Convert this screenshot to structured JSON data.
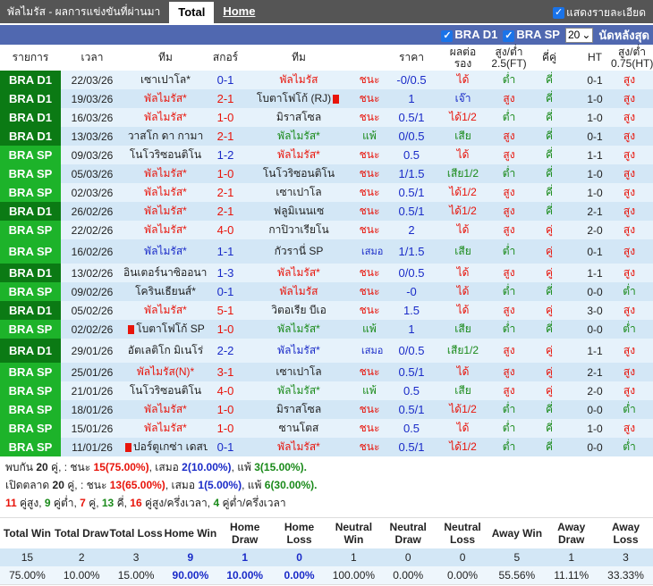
{
  "header": {
    "title": "พัลไมรัส - ผลการแข่งขันที่ผ่านมา",
    "tabs": [
      "Total",
      "Home"
    ],
    "show_detail": "แสดงรายละเอียด"
  },
  "filters": {
    "league1": "BRA D1",
    "league2": "BRA SP",
    "count": "20",
    "latest": "นัดหลังสุด"
  },
  "columns": [
    "รายการ",
    "เวลา",
    "ทีม",
    "สกอร์",
    "ทีม",
    "",
    "ราคา",
    "ผลต่อรอง",
    "สูง/ต่ำ 2.5(FT)",
    "คี่คู่",
    "HT",
    "สูง/ต่ำ 0.75(HT)"
  ],
  "colors": {
    "bra_d1": "#0b7a14",
    "bra_sp": "#1db32a",
    "win": "#e8140a",
    "draw": "#1a2bc8",
    "loss": "#1a8a1a"
  },
  "rows": [
    {
      "comp": "BRA D1",
      "date": "22/03/26",
      "home": "เซาเปาโล*",
      "score": "0-1",
      "away": "พัลไมรัส",
      "side": "away",
      "result": "ชนะ",
      "price": "-0/0.5",
      "ah": "ได้",
      "ou": "ต่ำ",
      "oe": "คี่",
      "ht": "0-1",
      "htou": "สูง"
    },
    {
      "comp": "BRA D1",
      "date": "19/03/26",
      "home": "พัลไมรัส*",
      "score": "2-1",
      "away": "โบตาโฟโก้ (RJ)",
      "away_card": true,
      "side": "home",
      "result": "ชนะ",
      "price": "1",
      "ah": "เจ๊า",
      "ou": "สูง",
      "oe": "คี่",
      "ht": "1-0",
      "htou": "สูง"
    },
    {
      "comp": "BRA D1",
      "date": "16/03/26",
      "home": "พัลไมรัส*",
      "score": "1-0",
      "away": "มิราสโซล",
      "side": "home",
      "result": "ชนะ",
      "price": "0.5/1",
      "ah": "ได้1/2",
      "ou": "ต่ำ",
      "oe": "คี่",
      "ht": "1-0",
      "htou": "สูง"
    },
    {
      "comp": "BRA D1",
      "date": "13/03/26",
      "home": "วาสโก ดา กามา",
      "score": "2-1",
      "away": "พัลไมรัส*",
      "side": "away",
      "result": "แพ้",
      "price": "0/0.5",
      "ah": "เสีย",
      "ou": "สูง",
      "oe": "คี่",
      "ht": "0-1",
      "htou": "สูง"
    },
    {
      "comp": "BRA SP",
      "date": "09/03/26",
      "home": "โนโวริซอนติโน",
      "score": "1-2",
      "away": "พัลไมรัส*",
      "side": "away",
      "result": "ชนะ",
      "price": "0.5",
      "ah": "ได้",
      "ou": "สูง",
      "oe": "คี่",
      "ht": "1-1",
      "htou": "สูง"
    },
    {
      "comp": "BRA SP",
      "date": "05/03/26",
      "home": "พัลไมรัส*",
      "score": "1-0",
      "away": "โนโวริซอนติโน",
      "side": "home",
      "result": "ชนะ",
      "price": "1/1.5",
      "ah": "เสีย1/2",
      "ou": "ต่ำ",
      "oe": "คี่",
      "ht": "1-0",
      "htou": "สูง"
    },
    {
      "comp": "BRA SP",
      "date": "02/03/26",
      "home": "พัลไมรัส*",
      "score": "2-1",
      "away": "เซาเปาโล",
      "side": "home",
      "result": "ชนะ",
      "price": "0.5/1",
      "ah": "ได้1/2",
      "ou": "สูง",
      "oe": "คี่",
      "ht": "1-0",
      "htou": "สูง"
    },
    {
      "comp": "BRA D1",
      "date": "26/02/26",
      "home": "พัลไมรัส*",
      "score": "2-1",
      "away": "ฟลูมิเนนเซ",
      "side": "home",
      "result": "ชนะ",
      "price": "0.5/1",
      "ah": "ได้1/2",
      "ou": "สูง",
      "oe": "คี่",
      "ht": "2-1",
      "htou": "สูง"
    },
    {
      "comp": "BRA SP",
      "date": "22/02/26",
      "home": "พัลไมรัส*",
      "score": "4-0",
      "away": "กาปิวาเรียโน",
      "side": "home",
      "result": "ชนะ",
      "price": "2",
      "ah": "ได้",
      "ou": "สูง",
      "oe": "คู่",
      "ht": "2-0",
      "htou": "สูง"
    },
    {
      "comp": "BRA SP",
      "date": "16/02/26",
      "home": "พัลไมรัส*",
      "score": "1-1",
      "away": "กัวรานี่ SP",
      "side": "home",
      "result": "เสมอ",
      "price": "1/1.5",
      "ah": "เสีย",
      "ou": "ต่ำ",
      "oe": "คู่",
      "ht": "0-1",
      "htou": "สูง"
    },
    {
      "comp": "BRA D1",
      "date": "13/02/26",
      "home": "อินเตอร์นาซิออนาล",
      "score": "1-3",
      "away": "พัลไมรัส*",
      "side": "away",
      "result": "ชนะ",
      "price": "0/0.5",
      "ah": "ได้",
      "ou": "สูง",
      "oe": "คู่",
      "ht": "1-1",
      "htou": "สูง"
    },
    {
      "comp": "BRA SP",
      "date": "09/02/26",
      "home": "โครินเธียนส์*",
      "score": "0-1",
      "away": "พัลไมรัส",
      "side": "away",
      "result": "ชนะ",
      "price": "-0",
      "ah": "ได้",
      "ou": "ต่ำ",
      "oe": "คี่",
      "ht": "0-0",
      "htou": "ต่ำ"
    },
    {
      "comp": "BRA D1",
      "date": "05/02/26",
      "home": "พัลไมรัส*",
      "score": "5-1",
      "away": "วิตอเรีย บีเอ",
      "side": "home",
      "result": "ชนะ",
      "price": "1.5",
      "ah": "ได้",
      "ou": "สูง",
      "oe": "คู่",
      "ht": "3-0",
      "htou": "สูง"
    },
    {
      "comp": "BRA SP",
      "date": "02/02/26",
      "home": "โบตาโฟโก้ SP",
      "home_card": true,
      "score": "1-0",
      "away": "พัลไมรัส*",
      "side": "away",
      "result": "แพ้",
      "price": "1",
      "ah": "เสีย",
      "ou": "ต่ำ",
      "oe": "คี่",
      "ht": "0-0",
      "htou": "ต่ำ"
    },
    {
      "comp": "BRA D1",
      "date": "29/01/26",
      "home": "อัตเลติโก มิเนโร่",
      "score": "2-2",
      "away": "พัลไมรัส*",
      "side": "away",
      "result": "เสมอ",
      "price": "0/0.5",
      "ah": "เสีย1/2",
      "ou": "สูง",
      "oe": "คู่",
      "ht": "1-1",
      "htou": "สูง"
    },
    {
      "comp": "BRA SP",
      "date": "25/01/26",
      "home": "พัลไมรัส(N)*",
      "score": "3-1",
      "away": "เซาเปาโล",
      "side": "home",
      "result": "ชนะ",
      "price": "0.5/1",
      "ah": "ได้",
      "ou": "สูง",
      "oe": "คู่",
      "ht": "2-1",
      "htou": "สูง"
    },
    {
      "comp": "BRA SP",
      "date": "21/01/26",
      "home": "โนโวริซอนติโน",
      "score": "4-0",
      "away": "พัลไมรัส*",
      "side": "away",
      "result": "แพ้",
      "price": "0.5",
      "ah": "เสีย",
      "ou": "สูง",
      "oe": "คู่",
      "ht": "2-0",
      "htou": "สูง"
    },
    {
      "comp": "BRA SP",
      "date": "18/01/26",
      "home": "พัลไมรัส*",
      "score": "1-0",
      "away": "มิราสโซล",
      "side": "home",
      "result": "ชนะ",
      "price": "0.5/1",
      "ah": "ได้1/2",
      "ou": "ต่ำ",
      "oe": "คี่",
      "ht": "0-0",
      "htou": "ต่ำ"
    },
    {
      "comp": "BRA SP",
      "date": "15/01/26",
      "home": "พัลไมรัส*",
      "score": "1-0",
      "away": "ซานโตส",
      "side": "home",
      "result": "ชนะ",
      "price": "0.5",
      "ah": "ได้",
      "ou": "ต่ำ",
      "oe": "คี่",
      "ht": "1-0",
      "htou": "สูง"
    },
    {
      "comp": "BRA SP",
      "date": "11/01/26",
      "home": "ปอร์ตูเกซ่า เดสปอร์เตส",
      "home_card": true,
      "score": "0-1",
      "away": "พัลไมรัส*",
      "side": "away",
      "result": "ชนะ",
      "price": "0.5/1",
      "ah": "ได้1/2",
      "ou": "ต่ำ",
      "oe": "คี่",
      "ht": "0-0",
      "htou": "ต่ำ"
    }
  ],
  "summary": {
    "line1": {
      "prefix": "พบกัน",
      "games": "20",
      "unit": "คู่, : ชนะ",
      "win": "15",
      "win_pct": "(75.00%)",
      "draw_label": ", เสมอ",
      "draw": "2",
      "draw_pct": "(10.00%)",
      "loss_label": ", แพ้",
      "loss": "3",
      "loss_pct": "(15.00%)."
    },
    "line2": {
      "prefix": "เปิดตลาด",
      "games": "20",
      "unit": "คู่, : ชนะ",
      "win": "13",
      "win_pct": "(65.00%)",
      "draw_label": ", เสมอ",
      "draw": "1",
      "draw_pct": "(5.00%)",
      "loss_label": ", แพ้",
      "loss": "6",
      "loss_pct": "(30.00%)."
    },
    "line3": [
      {
        "n": "11",
        "t": " คู่สูง, ",
        "c": "red"
      },
      {
        "n": "9",
        "t": " คู่ต่ำ, ",
        "c": "green"
      },
      {
        "n": "7",
        "t": " คู่, ",
        "c": "red"
      },
      {
        "n": "13",
        "t": " คี่, ",
        "c": "green"
      },
      {
        "n": "16",
        "t": " คู่สูง/ครึ่งเวลา, ",
        "c": "red"
      },
      {
        "n": "4",
        "t": " คู่ต่ำ/ครึ่งเวลา",
        "c": "green"
      }
    ]
  },
  "stats": {
    "headers": [
      "Total Win",
      "Total Draw",
      "Total Loss",
      "Home Win",
      "Home Draw",
      "Home Loss",
      "Neutral Win",
      "Neutral Draw",
      "Neutral Loss",
      "Away Win",
      "Away Draw",
      "Away Loss"
    ],
    "values": [
      "15",
      "2",
      "3",
      "9",
      "1",
      "0",
      "1",
      "0",
      "0",
      "5",
      "1",
      "3"
    ],
    "percents": [
      "75.00%",
      "10.00%",
      "15.00%",
      "90.00%",
      "10.00%",
      "0.00%",
      "100.00%",
      "0.00%",
      "0.00%",
      "55.56%",
      "11.11%",
      "33.33%"
    ]
  }
}
